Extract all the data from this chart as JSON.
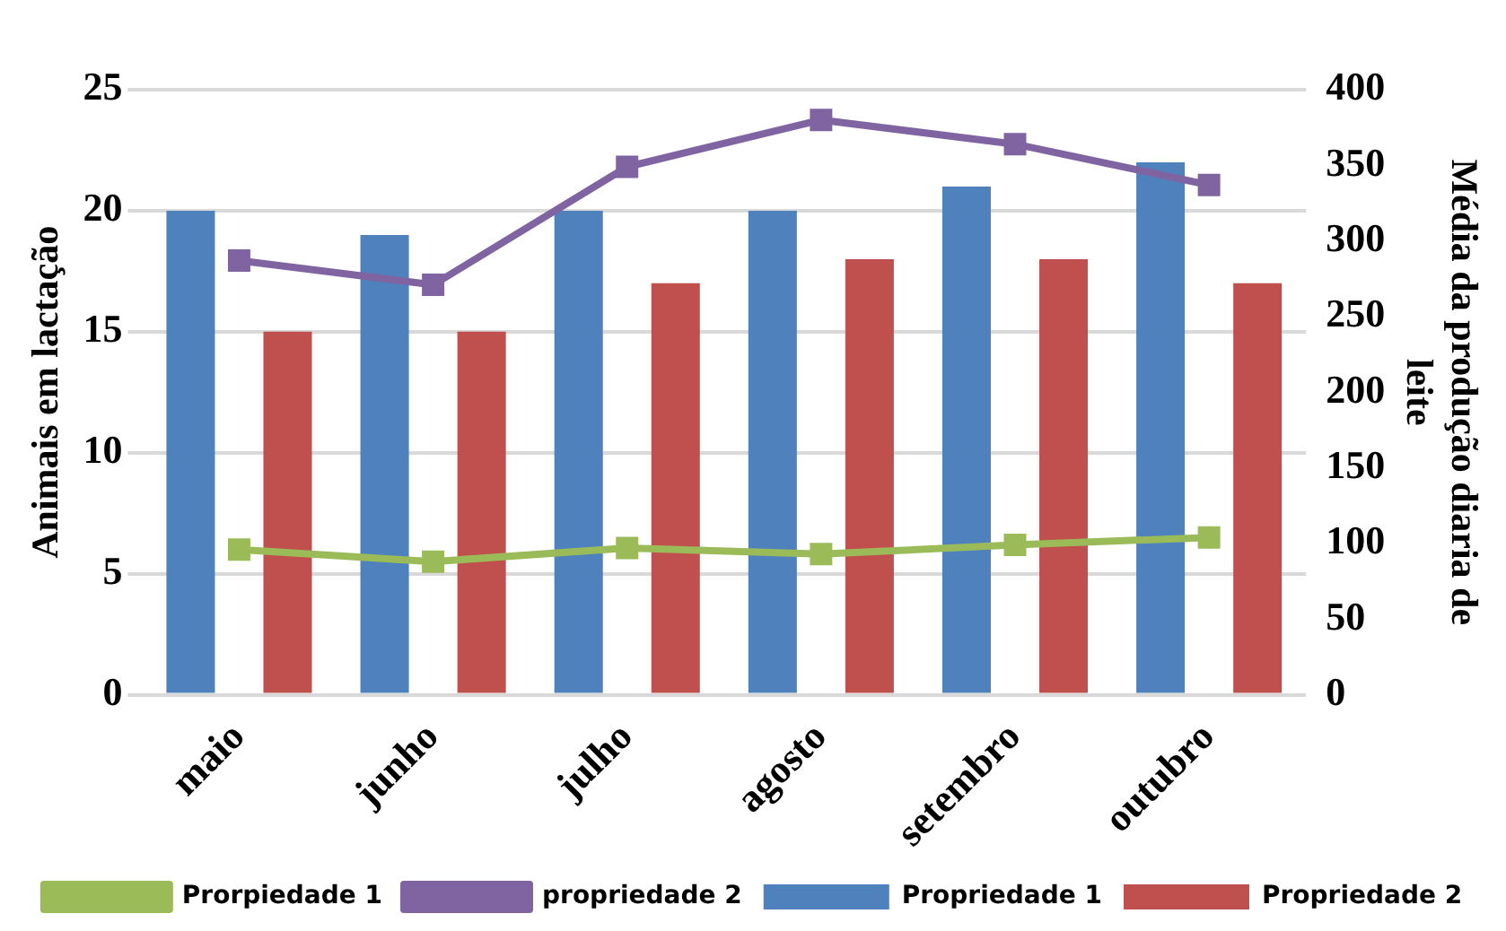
{
  "chart_data": {
    "type": "bar",
    "categories": [
      "maio",
      "junho",
      "julho",
      "agosto",
      "setembro",
      "outubro"
    ],
    "ylabel": "Animais em lactação",
    "y2label": "Média da produção diaria de leite",
    "ylim": [
      0,
      25
    ],
    "yticks": [
      0,
      5,
      10,
      15,
      20,
      25
    ],
    "y2lim": [
      0,
      400
    ],
    "y2ticks": [
      0,
      50,
      100,
      150,
      200,
      250,
      300,
      350,
      400
    ],
    "grid": "y",
    "legend": "bottom",
    "marker": "square",
    "series": [
      {
        "name": "Propriedade 1",
        "color": "#4f81bd",
        "values": [
          20,
          19,
          20,
          20,
          21,
          22
        ]
      },
      {
        "name": "Propriedade 2",
        "color": "#c0504d",
        "values": [
          15,
          15,
          17,
          18,
          18,
          17
        ]
      },
      {
        "name": "Prorpiedade 1",
        "type": "line",
        "axis": "y2",
        "color": "#9bbb59",
        "values": [
          96,
          88,
          97,
          93,
          99,
          104
        ]
      },
      {
        "name": "propriedade 2",
        "type": "line",
        "axis": "y2",
        "color": "#8064a2",
        "values": [
          287,
          271,
          349,
          380,
          364,
          337
        ]
      }
    ]
  }
}
